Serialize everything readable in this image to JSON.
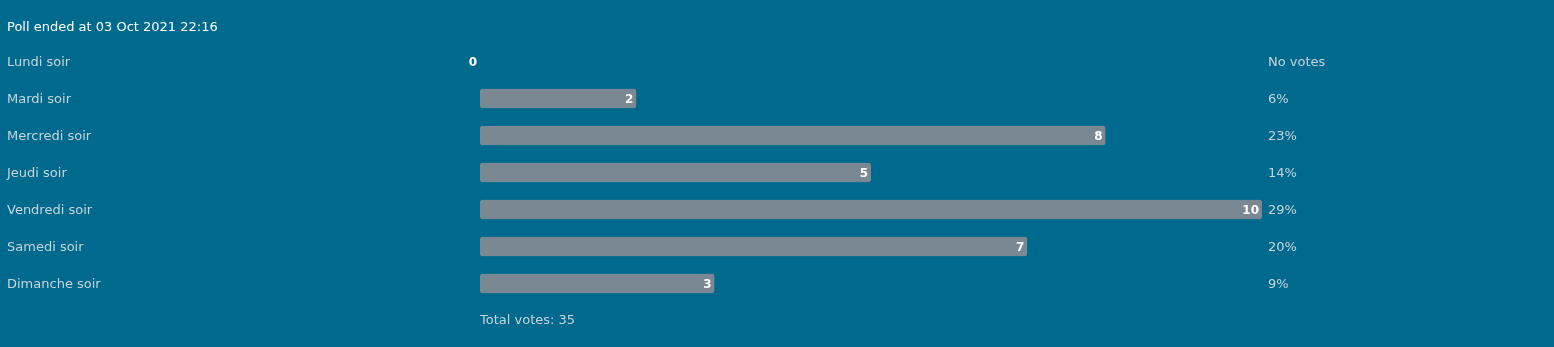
{
  "chart_data": {
    "type": "bar",
    "orientation": "horizontal",
    "title": "Poll ended at 03 Oct 2021 22:16",
    "categories": [
      "Lundi soir",
      "Mardi soir",
      "Mercredi soir",
      "Jeudi soir",
      "Vendredi soir",
      "Samedi soir",
      "Dimanche soir"
    ],
    "values": [
      0,
      2,
      8,
      5,
      10,
      7,
      3
    ],
    "color": "#7a8893",
    "data_labels": true,
    "annotations": [
      "No votes",
      "6%",
      "23%",
      "14%",
      "29%",
      "20%",
      "9%",
      "Total votes: 35"
    ]
  }
}
